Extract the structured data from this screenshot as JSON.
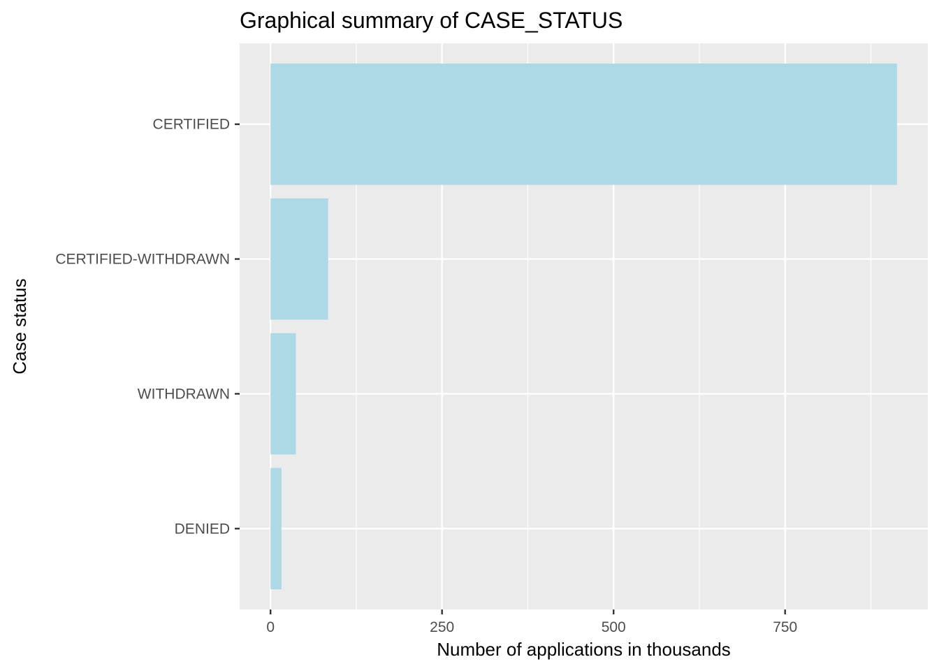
{
  "chart_data": {
    "type": "bar",
    "orientation": "horizontal",
    "title": "Graphical summary of CASE_STATUS",
    "xlabel": "Number of applications in thousands",
    "ylabel": "Case status",
    "categories": [
      "DENIED",
      "WITHDRAWN",
      "CERTIFIED-WITHDRAWN",
      "CERTIFIED"
    ],
    "values": [
      16,
      37,
      84,
      913
    ],
    "xlim": [
      -45,
      958
    ],
    "xticks": [
      0,
      250,
      500,
      750
    ],
    "xtick_labels": [
      "0",
      "250",
      "500",
      "750"
    ],
    "grid": true,
    "legend": "none",
    "colors": {
      "bar": "#ADD8E6",
      "panel": "#EBEBEB",
      "grid": "#FFFFFF",
      "tick_text": "#4D4D4D"
    }
  }
}
